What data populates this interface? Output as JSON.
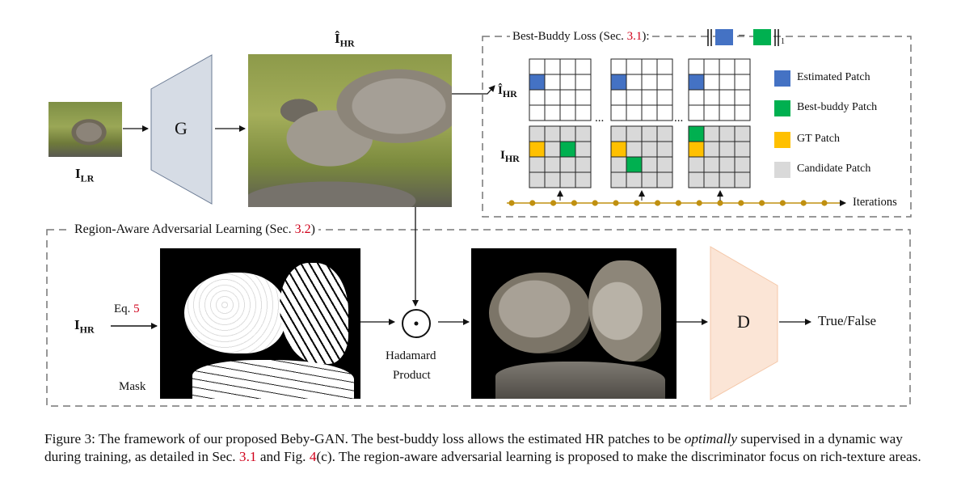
{
  "figure": {
    "generator_label": "G",
    "discriminator_label": "D",
    "lr_label": {
      "main": "I",
      "sub": "LR"
    },
    "hr_hat_label": {
      "main": "Î",
      "sub": "HR"
    },
    "hr_label": {
      "main": "I",
      "sub": "HR"
    },
    "best_buddy": {
      "title_prefix": "Best-Buddy Loss (Sec. ",
      "title_ref": "3.1",
      "title_suffix": "):",
      "formula_minus": "−",
      "formula_sub": "1",
      "row_labels": [
        {
          "main": "Î",
          "sub": "HR"
        },
        {
          "main": "I",
          "sub": "HR"
        }
      ],
      "dots": "...",
      "iterations_label": "Iterations",
      "legend": [
        {
          "label": "Estimated Patch",
          "color": "#4472c4"
        },
        {
          "label": "Best-buddy Patch",
          "color": "#00b050"
        },
        {
          "label": "GT Patch",
          "color": "#ffc000"
        },
        {
          "label": "Candidate Patch",
          "color": "#d9d9d9"
        }
      ]
    },
    "region_aware": {
      "title_prefix": "Region-Aware Adversarial Learning (Sec. ",
      "title_ref": "3.2",
      "title_suffix": ")",
      "eq_prefix": "Eq. ",
      "eq_ref": "5",
      "mask_label": "Mask",
      "hadamard_line1": "Hadamard",
      "hadamard_line2": "Product",
      "output_label": "True/False"
    }
  },
  "caption": {
    "part1": "Figure 3: The framework of our proposed Beby-GAN. The best-buddy loss allows the estimated HR patches to be ",
    "italic": "optimally",
    "part2": " supervised in a dynamic way during training, as detailed in Sec. ",
    "ref1": "3.1",
    "part3": " and Fig. ",
    "ref2": "4",
    "part4": "(c). The region-aware adversarial learning is proposed to make the discriminator focus on rich-texture areas."
  },
  "colors": {
    "estimated": "#4472c4",
    "best_buddy": "#00b050",
    "gt": "#ffc000",
    "candidate": "#d9d9d9",
    "generator_fill": "#d6dce5",
    "discriminator_fill": "#fbe5d6",
    "timeline": "#c09010",
    "reference_red": "#d0021b"
  }
}
